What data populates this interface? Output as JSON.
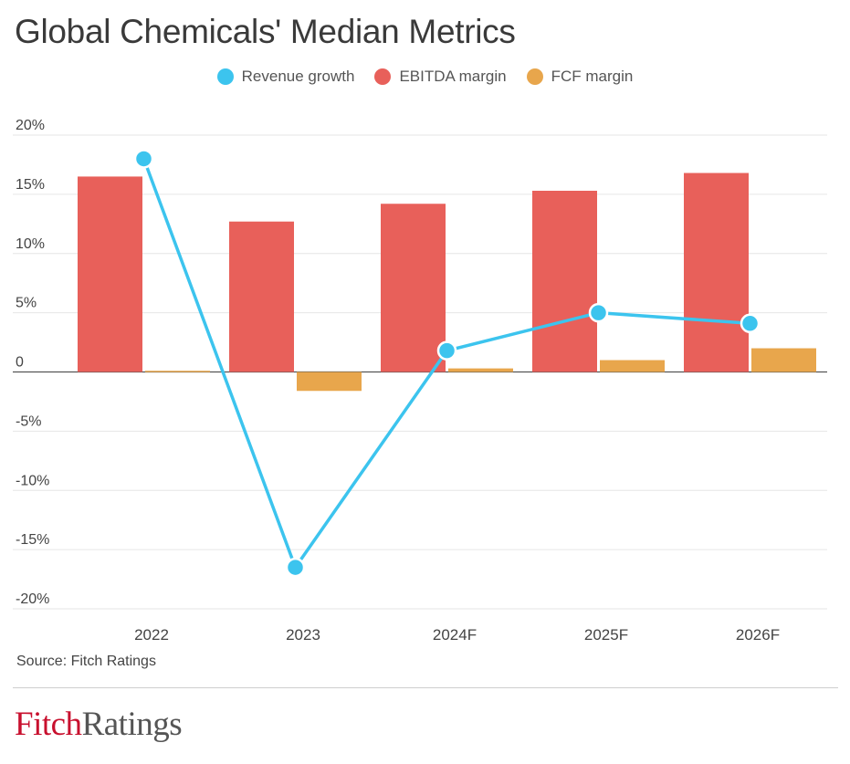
{
  "title": "Global Chemicals' Median Metrics",
  "source": "Source: Fitch Ratings",
  "logo": {
    "part1": "Fitch",
    "part2": "Ratings"
  },
  "colors": {
    "revenue": "#3cc4ee",
    "ebitda": "#e8605a",
    "fcf": "#e8a64c",
    "grid": "#e6e6e6",
    "axis": "#555555"
  },
  "legend": [
    "Revenue growth",
    "EBITDA margin",
    "FCF margin"
  ],
  "chart_data": {
    "type": "bar",
    "categories": [
      "2022",
      "2023",
      "2024F",
      "2025F",
      "2026F"
    ],
    "series": [
      {
        "name": "EBITDA margin",
        "type": "bar",
        "values": [
          16.5,
          12.7,
          14.2,
          15.3,
          16.8
        ]
      },
      {
        "name": "FCF margin",
        "type": "bar",
        "values": [
          0.1,
          -1.6,
          0.3,
          1.0,
          2.0
        ]
      },
      {
        "name": "Revenue growth",
        "type": "line",
        "values": [
          18.0,
          -16.5,
          1.8,
          5.0,
          4.1
        ]
      }
    ],
    "ylim": [
      -20,
      20
    ],
    "yticks": [
      20,
      15,
      10,
      5,
      0,
      -5,
      -10,
      -15,
      -20
    ],
    "ytick_labels": [
      "20%",
      "15%",
      "10%",
      "5%",
      "0",
      "-5%",
      "-10%",
      "-15%",
      "-20%"
    ],
    "grid": true,
    "legend_position": "top-center"
  }
}
